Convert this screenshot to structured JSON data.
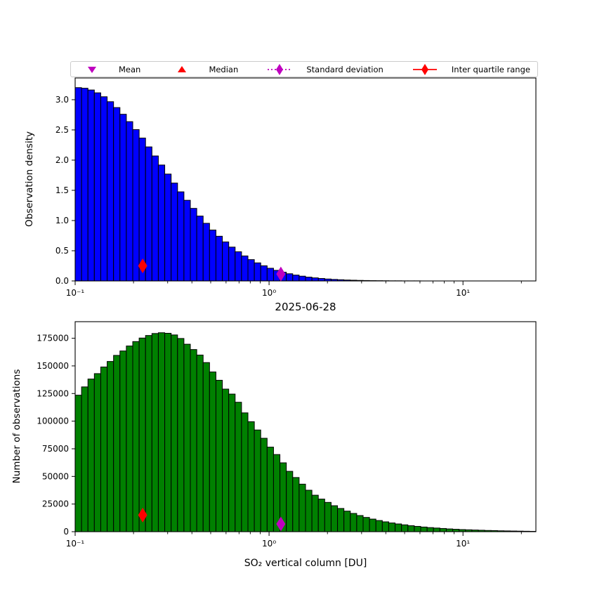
{
  "legend": {
    "items": [
      {
        "label": "Mean",
        "marker": "triangle-down",
        "color": "#bf00bf",
        "line": "none"
      },
      {
        "label": "Median",
        "marker": "triangle-up",
        "color": "#ff0000",
        "line": "none"
      },
      {
        "label": "Standard deviation",
        "marker": "thin-diamond",
        "color": "#bf00bf",
        "line": "dotted"
      },
      {
        "label": "Inter quartile range",
        "marker": "thin-diamond",
        "color": "#ff0000",
        "line": "solid"
      }
    ]
  },
  "x_axis": {
    "scale": "log",
    "min_du": 0.1,
    "max_du": 23.8,
    "major_ticks": [
      0.1,
      1,
      10
    ],
    "major_tick_labels": [
      "10⁻¹",
      "10⁰",
      "10¹"
    ],
    "minor_ticks": [
      0.2,
      0.3,
      0.4,
      0.5,
      0.6,
      0.7,
      0.8,
      0.9,
      2,
      3,
      4,
      5,
      6,
      7,
      8,
      9,
      20
    ],
    "bin_start_exponent": -1,
    "bin_step_decades": 0.033,
    "bin_count": 72
  },
  "chart_data": [
    {
      "type": "bar",
      "id": "observation-density-histogram",
      "xlabel": "2025-06-28",
      "ylabel": "Observation density",
      "x_scale": "log",
      "xlim": [
        0.1,
        23.8
      ],
      "ylim": [
        0,
        3.36
      ],
      "yticks": [
        0,
        0.5,
        1.0,
        1.5,
        2.0,
        2.5,
        3.0
      ],
      "ytick_labels": [
        "0.0",
        "0.5",
        "1.0",
        "1.5",
        "2.0",
        "2.5",
        "3.0"
      ],
      "bar_color": "#0000ff",
      "edge_color": "#000000",
      "grid": false,
      "values": [
        3.2,
        3.19,
        3.161,
        3.114,
        3.049,
        2.967,
        2.87,
        2.759,
        2.637,
        2.505,
        2.365,
        2.219,
        2.069,
        1.919,
        1.769,
        1.62,
        1.475,
        1.335,
        1.201,
        1.074,
        0.954,
        0.843,
        0.74,
        0.646,
        0.56,
        0.483,
        0.414,
        0.353,
        0.299,
        0.251,
        0.21,
        0.175,
        0.145,
        0.119,
        0.097,
        0.079,
        0.063,
        0.051,
        0.041,
        0.032,
        0.025,
        0.02,
        0.015,
        0.012,
        0.009,
        0.007,
        0.005,
        0.004,
        0.003,
        0.002,
        0.002,
        0.001,
        0.001,
        0.001,
        0,
        0,
        0,
        0,
        0,
        0,
        0,
        0,
        0,
        0,
        0,
        0,
        0,
        0,
        0,
        0,
        0,
        0
      ],
      "markers": [
        {
          "name": "inter-quartile-range",
          "x": 0.223,
          "y": 0.25,
          "color": "#ff0000",
          "shape": "thin-diamond"
        },
        {
          "name": "standard-deviation",
          "x": 1.15,
          "y": 0.115,
          "color": "#bf00bf",
          "shape": "thin-diamond"
        }
      ]
    },
    {
      "type": "bar",
      "id": "observation-count-histogram",
      "xlabel": "SO₂ vertical column [DU]",
      "ylabel": "Number of observations",
      "x_scale": "log",
      "xlim": [
        0.1,
        23.8
      ],
      "ylim": [
        0,
        190000
      ],
      "yticks": [
        0,
        25000,
        50000,
        75000,
        100000,
        125000,
        150000,
        175000
      ],
      "ytick_labels": [
        "0",
        "25000",
        "50000",
        "75000",
        "100000",
        "125000",
        "150000",
        "175000"
      ],
      "bar_color": "#008000",
      "edge_color": "#000000",
      "grid": false,
      "values": [
        123500,
        131000,
        138100,
        143000,
        149000,
        154000,
        159500,
        163500,
        168000,
        172000,
        175200,
        177500,
        179300,
        180000,
        179500,
        178000,
        174800,
        169600,
        164800,
        159800,
        153000,
        144500,
        137000,
        129000,
        124500,
        117100,
        107500,
        99500,
        92000,
        84500,
        76500,
        69800,
        62300,
        54600,
        49000,
        43000,
        37500,
        33000,
        29500,
        26500,
        23500,
        21000,
        18600,
        16500,
        14600,
        12900,
        11400,
        10100,
        8900,
        7900,
        7000,
        6200,
        5400,
        4800,
        4200,
        3700,
        3300,
        2900,
        2500,
        2200,
        1900,
        1700,
        1500,
        1300,
        1100,
        1000,
        800,
        700,
        600,
        500,
        400,
        300
      ],
      "markers": [
        {
          "name": "inter-quartile-range",
          "x": 0.223,
          "y": 15000,
          "color": "#ff0000",
          "shape": "thin-diamond"
        },
        {
          "name": "standard-deviation",
          "x": 1.15,
          "y": 7000,
          "color": "#bf00bf",
          "shape": "thin-diamond"
        }
      ]
    }
  ]
}
